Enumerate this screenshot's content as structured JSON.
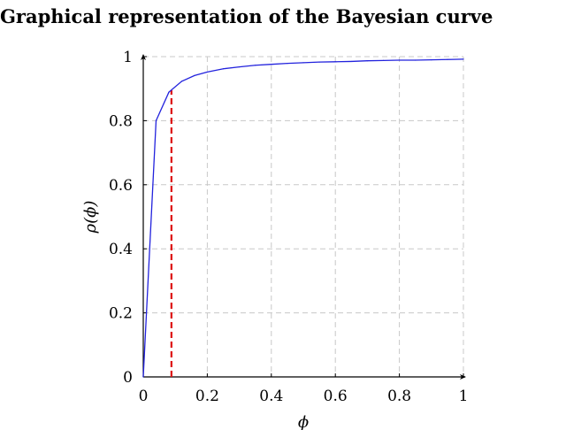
{
  "chart_data": {
    "type": "line",
    "title": "Graphical representation of the Bayesian curve",
    "xlabel": "ϕ",
    "ylabel": "ρ(ϕ)",
    "xlim": [
      0,
      1
    ],
    "ylim": [
      0,
      1
    ],
    "x_ticks": [
      "0",
      "0.2",
      "0.4",
      "0.6",
      "0.8",
      "1"
    ],
    "y_ticks": [
      "0",
      "0.2",
      "0.4",
      "0.6",
      "0.8",
      "1"
    ],
    "grid": true,
    "grid_style": "dashed",
    "colors": {
      "curve": "#2222dd",
      "marker_line": "#dd1111",
      "grid": "#c8c8c8"
    },
    "series": [
      {
        "x": [
          0,
          0.04,
          0.08,
          0.12,
          0.16,
          0.2,
          0.25,
          0.3,
          0.35,
          0.4,
          0.45,
          0.5,
          0.55,
          0.6,
          0.65,
          0.7,
          0.75,
          0.8,
          0.85,
          0.9,
          0.95,
          1.0
        ],
        "y": [
          0,
          0.8,
          0.889,
          0.923,
          0.941,
          0.952,
          0.962,
          0.968,
          0.973,
          0.976,
          0.979,
          0.981,
          0.983,
          0.984,
          0.985,
          0.987,
          0.988,
          0.989,
          0.989,
          0.99,
          0.991,
          0.992
        ]
      }
    ],
    "annotations": [
      {
        "type": "vertical-dashed-line",
        "x": 0.088,
        "y_from": 0,
        "y_to": 0.895
      }
    ]
  }
}
